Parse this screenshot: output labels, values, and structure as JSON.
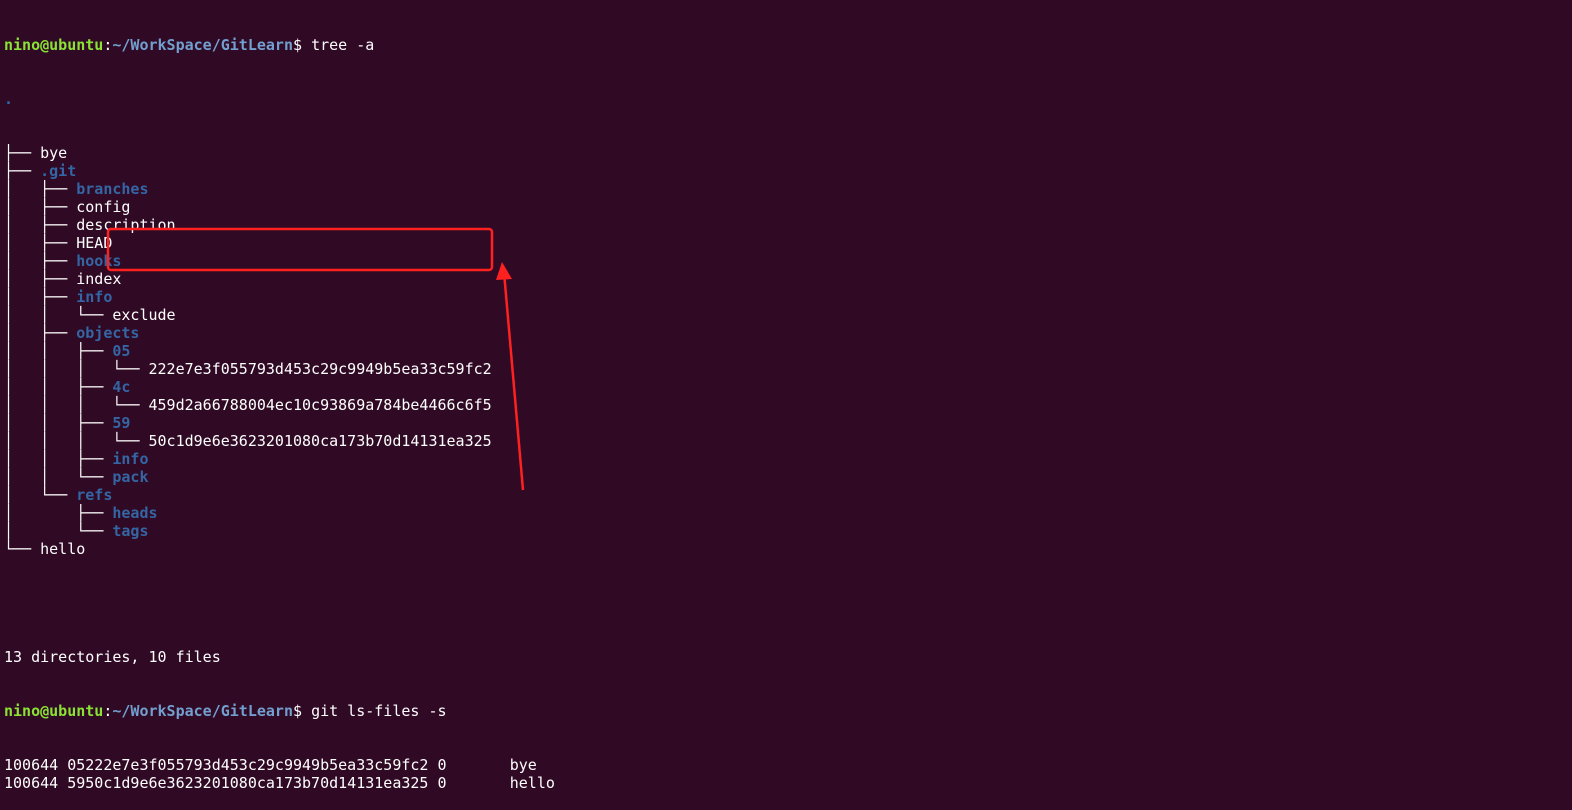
{
  "terminal": {
    "prompt1": {
      "user_host": "nino@ubuntu",
      "sep": ":",
      "path": "~/WorkSpace/GitLearn",
      "dollar": "$ ",
      "command": "tree -a"
    },
    "tree": {
      "root": ".",
      "lines": [
        {
          "prefix": "├── ",
          "name": "bye",
          "type": "file"
        },
        {
          "prefix": "├── ",
          "name": ".git",
          "type": "dir"
        },
        {
          "prefix": "│   ├── ",
          "name": "branches",
          "type": "dir"
        },
        {
          "prefix": "│   ├── ",
          "name": "config",
          "type": "file"
        },
        {
          "prefix": "│   ├── ",
          "name": "description",
          "type": "file"
        },
        {
          "prefix": "│   ├── ",
          "name": "HEAD",
          "type": "file"
        },
        {
          "prefix": "│   ├── ",
          "name": "hooks",
          "type": "dir"
        },
        {
          "prefix": "│   ├── ",
          "name": "index",
          "type": "file"
        },
        {
          "prefix": "│   ├── ",
          "name": "info",
          "type": "dir"
        },
        {
          "prefix": "│   │   └── ",
          "name": "exclude",
          "type": "file"
        },
        {
          "prefix": "│   ├── ",
          "name": "objects",
          "type": "dir"
        },
        {
          "prefix": "│   │   ├── ",
          "name": "05",
          "type": "dir"
        },
        {
          "prefix": "│   │   │   └── ",
          "name": "222e7e3f055793d453c29c9949b5ea33c59fc2",
          "type": "file"
        },
        {
          "prefix": "│   │   ├── ",
          "name": "4c",
          "type": "dir"
        },
        {
          "prefix": "│   │   │   └── ",
          "name": "459d2a66788004ec10c93869a784be4466c6f5",
          "type": "file"
        },
        {
          "prefix": "│   │   ├── ",
          "name": "59",
          "type": "dir"
        },
        {
          "prefix": "│   │   │   └── ",
          "name": "50c1d9e6e3623201080ca173b70d14131ea325",
          "type": "file"
        },
        {
          "prefix": "│   │   ├── ",
          "name": "info",
          "type": "dir"
        },
        {
          "prefix": "│   │   └── ",
          "name": "pack",
          "type": "dir"
        },
        {
          "prefix": "│   └── ",
          "name": "refs",
          "type": "dir"
        },
        {
          "prefix": "│       ├── ",
          "name": "heads",
          "type": "dir"
        },
        {
          "prefix": "│       └── ",
          "name": "tags",
          "type": "dir"
        },
        {
          "prefix": "└── ",
          "name": "hello",
          "type": "file"
        }
      ]
    },
    "summary": "13 directories, 10 files",
    "prompt2": {
      "user_host": "nino@ubuntu",
      "sep": ":",
      "path": "~/WorkSpace/GitLearn",
      "dollar": "$ ",
      "command": "git ls-files -s"
    },
    "ls_files": [
      {
        "mode": "100644",
        "hash": "05222e7e3f055793d453c29c9949b5ea33c59fc2",
        "stage": "0",
        "tab": "       ",
        "name": "bye"
      },
      {
        "mode": "100644",
        "hash": "5950c1d9e6e3623201080ca173b70d14131ea325",
        "stage": "0",
        "tab": "       ",
        "name": "hello"
      }
    ]
  },
  "annotation": {
    "color": "#ff2020"
  }
}
